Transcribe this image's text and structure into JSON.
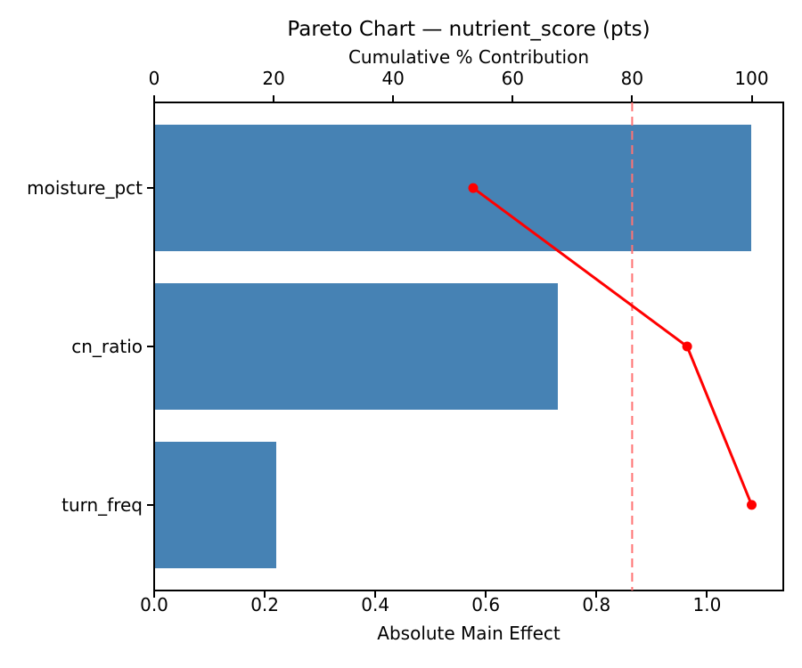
{
  "chart_data": {
    "type": "bar",
    "subtype": "pareto",
    "orientation": "horizontal",
    "title": "Pareto Chart — nutrient_score (pts)",
    "xlabel": "Absolute Main Effect",
    "categories": [
      "moisture_pct",
      "cn_ratio",
      "turn_freq"
    ],
    "series": [
      {
        "name": "Absolute Main Effect",
        "type": "bar",
        "values": [
          1.08,
          0.73,
          0.22
        ]
      },
      {
        "name": "Cumulative % Contribution",
        "type": "line",
        "values": [
          53.4,
          89.2,
          100.0
        ]
      }
    ],
    "top_axis": {
      "label": "Cumulative % Contribution",
      "tick_labels": [
        "0",
        "20",
        "40",
        "60",
        "80",
        "100"
      ],
      "tick_values": [
        0,
        20,
        40,
        60,
        80,
        100
      ],
      "range": [
        0,
        105.3
      ]
    },
    "bottom_axis": {
      "label": "Absolute Main Effect",
      "tick_labels": [
        "0.0",
        "0.2",
        "0.4",
        "0.6",
        "0.8",
        "1.0"
      ],
      "tick_values": [
        0,
        0.2,
        0.4,
        0.6,
        0.8,
        1.0
      ],
      "range": [
        0,
        1.138
      ]
    },
    "threshold_line": {
      "value": 80,
      "axis": "top",
      "style": "dashed"
    },
    "grid": false,
    "legend": null,
    "colors": {
      "bar": "#4682b4",
      "line": "#ff0000",
      "threshold_line": "#ff7373",
      "text": "#000000",
      "background": "#ffffff"
    }
  }
}
